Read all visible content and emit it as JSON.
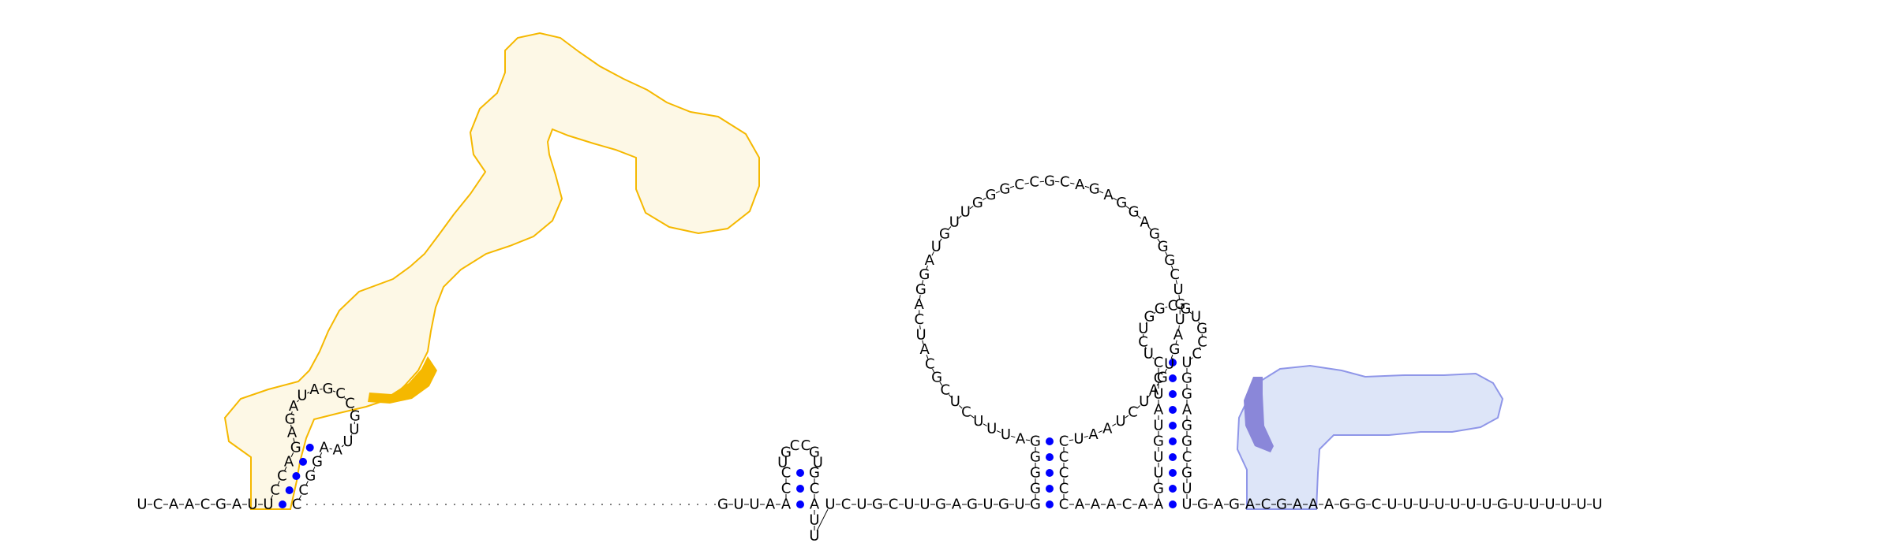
{
  "colors": {
    "highlight_orange_outline": "#f5b800",
    "highlight_orange_fill": "#fdf8e6",
    "highlight_orange_accent": "#f5b800",
    "highlight_blue_outline": "#8f96e8",
    "highlight_blue_fill": "#dde5f8",
    "highlight_blue_accent": "#8a87d9",
    "pair_dot": "#0000ff",
    "text": "#000000"
  },
  "segments": {
    "start": "UCAACGAU",
    "h1_stem5": "UCCAG",
    "h1_loop": "AGAUAGCCGUUA",
    "h1_stem3": "AGGCC",
    "between12": "GUUA",
    "h2_stem5": "ACC",
    "h2_loop": "UGCCGU",
    "h2_stem3": "GCAUU",
    "mid1": "UCUGCUUGAGUGU",
    "h3_stem5": "GGGGG",
    "h3_loop": "AUUUCUCGCAUCAGGAUGUUGGGCCGCAGAGGAGGGCUGUAGUGAUCUAAU",
    "h3_stem3": "CCCCC",
    "mid2": "AAACA",
    "h4_stem5": "AGUUGUAUCC",
    "h4_bulge": "UCUGGCGUGCC",
    "h4_stem3": "UGGAGGCGUU",
    "end": "GAGACGAAAGGCUUUUUUUGUUUUUU"
  }
}
